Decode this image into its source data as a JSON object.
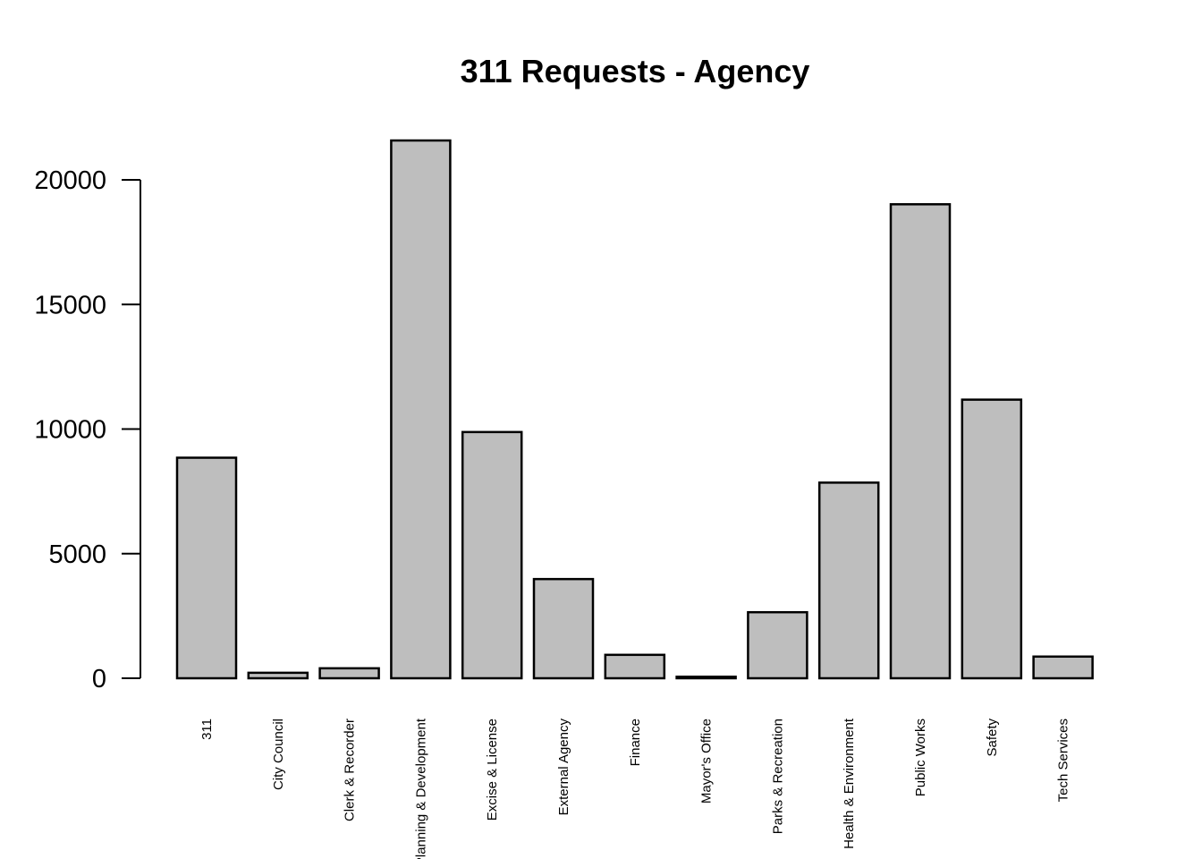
{
  "chart_data": {
    "type": "bar",
    "title": "311 Requests - Agency",
    "xlabel": "",
    "ylabel": "",
    "categories": [
      "311",
      "City Council",
      "Clerk & Recorder",
      "Planning & Development",
      "Excise & License",
      "External Agency",
      "Finance",
      "Mayor's Office",
      "Parks & Recreation",
      "Health & Environment",
      "Public Works",
      "Safety",
      "Tech Services"
    ],
    "values": [
      8850,
      220,
      400,
      21580,
      9880,
      3980,
      940,
      60,
      2650,
      7850,
      19020,
      11180,
      870
    ],
    "ylim": [
      0,
      21580
    ],
    "yticks": [
      0,
      5000,
      10000,
      15000,
      20000
    ],
    "grid": false,
    "bar_color": "#bebebe",
    "border_color": "#000000"
  }
}
